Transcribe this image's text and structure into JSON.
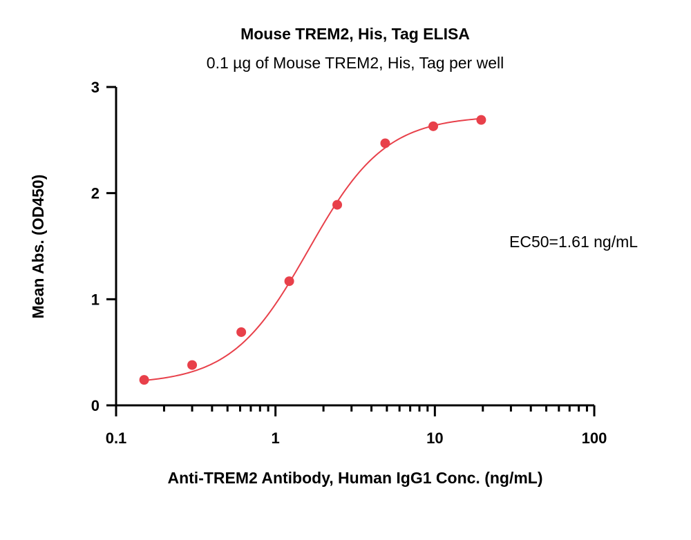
{
  "chart_data": {
    "type": "scatter",
    "title": "Mouse TREM2, His, Tag ELISA",
    "subtitle": "0.1 µg of Mouse TREM2, His, Tag per well",
    "xlabel": "Anti-TREM2 Antibody, Human IgG1 Conc. (ng/mL)",
    "ylabel": "Mean Abs. (OD450)",
    "xscale": "log",
    "xlim": [
      0.1,
      100
    ],
    "ylim": [
      0,
      3
    ],
    "xticks": [
      0.1,
      1,
      10,
      100
    ],
    "xtick_labels": [
      "0.1",
      "1",
      "10",
      "100"
    ],
    "yticks": [
      0,
      1,
      2,
      3
    ],
    "ytick_labels": [
      "0",
      "1",
      "2",
      "3"
    ],
    "grid": false,
    "color": "#e8404a",
    "series": [
      {
        "x": [
          0.15,
          0.3,
          0.61,
          1.22,
          2.44,
          4.88,
          9.77,
          19.53
        ],
        "y": [
          0.24,
          0.38,
          0.69,
          1.17,
          1.89,
          2.47,
          2.63,
          2.69
        ]
      }
    ],
    "fit_curve": {
      "bottom": 0.2,
      "top": 2.73,
      "ec50": 1.61,
      "hill": 1.8
    },
    "annotations": [
      {
        "text": "EC50=1.61 ng/mL"
      }
    ]
  }
}
